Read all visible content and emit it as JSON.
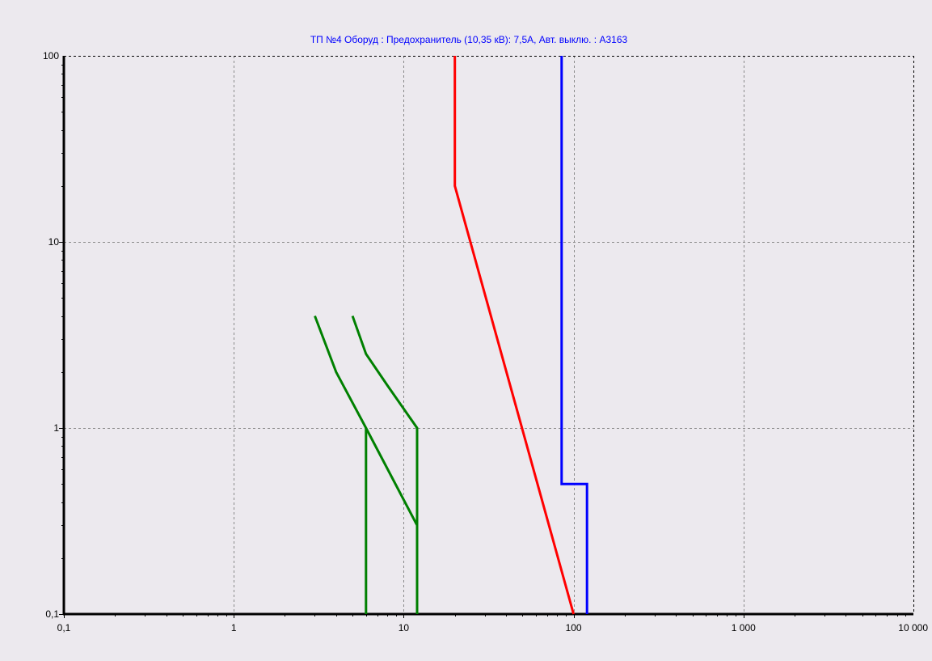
{
  "colors": {
    "background": "#ece9ee",
    "grid": "#8a8a8a",
    "axis": "#000000",
    "title": "#0000ff"
  },
  "chart_data": {
    "type": "line",
    "title": "ТП №4 Оборуд : Предохранитель (10,35 кВ): 7,5А,  Авт. выклю. : А3163",
    "xlabel": "",
    "ylabel": "",
    "x_scale": "log",
    "y_scale": "log",
    "xlim": [
      0.1,
      10000
    ],
    "ylim": [
      0.1,
      100
    ],
    "grid": true,
    "x_ticks": [
      {
        "value": 0.1,
        "label": "0,1"
      },
      {
        "value": 1,
        "label": "1"
      },
      {
        "value": 10,
        "label": "10"
      },
      {
        "value": 100,
        "label": "100"
      },
      {
        "value": 1000,
        "label": "1 000"
      },
      {
        "value": 10000,
        "label": "10 000"
      }
    ],
    "y_ticks": [
      {
        "value": 0.1,
        "label": "0,1"
      },
      {
        "value": 1,
        "label": "1"
      },
      {
        "value": 10,
        "label": "10"
      },
      {
        "value": 100,
        "label": "100"
      }
    ],
    "series": [
      {
        "color": "#008000",
        "points": [
          [
            3,
            4
          ],
          [
            4,
            2
          ],
          [
            6,
            1
          ],
          [
            12,
            0.3
          ],
          [
            12,
            0.1
          ]
        ]
      },
      {
        "color": "#008000",
        "points": [
          [
            5,
            4
          ],
          [
            6,
            2.5
          ],
          [
            8,
            1.7
          ],
          [
            12,
            1
          ],
          [
            12,
            0.1
          ]
        ]
      },
      {
        "color": "#008000",
        "points": [
          [
            6,
            1
          ],
          [
            6,
            0.1
          ]
        ]
      },
      {
        "color": "#ff0000",
        "points": [
          [
            20,
            100
          ],
          [
            20,
            20
          ],
          [
            100,
            0.1
          ]
        ]
      },
      {
        "color": "#0000ff",
        "points": [
          [
            85,
            100
          ],
          [
            85,
            0.5
          ],
          [
            120,
            0.5
          ],
          [
            120,
            0.1
          ]
        ]
      }
    ]
  }
}
